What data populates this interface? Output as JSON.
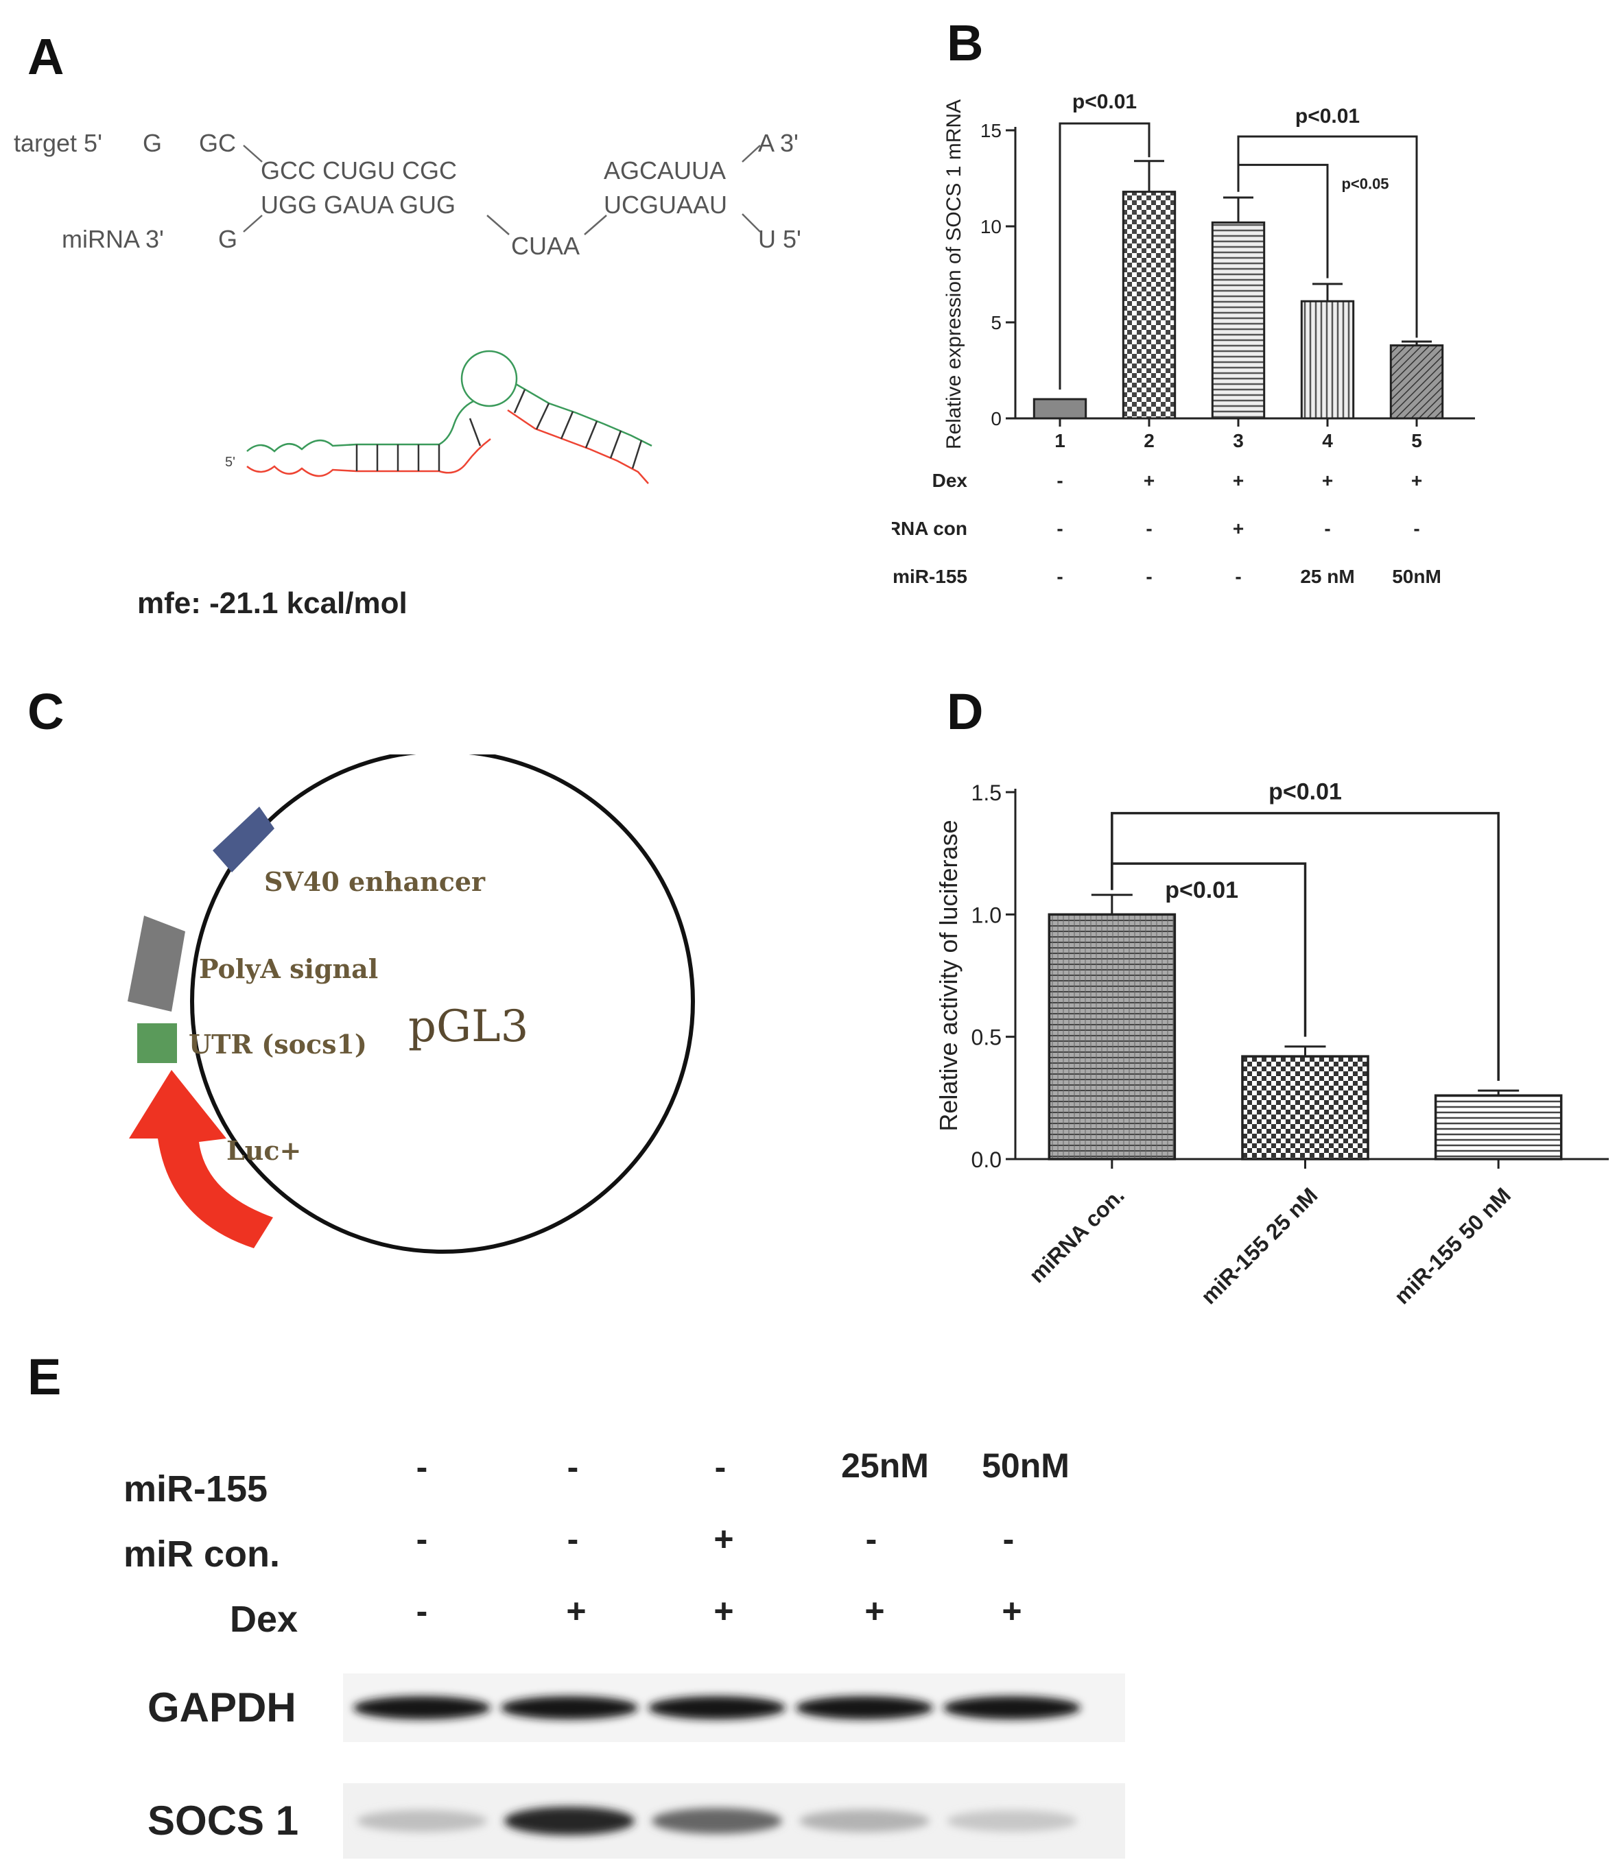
{
  "panels": {
    "A": "A",
    "B": "B",
    "C": "C",
    "D": "D",
    "E": "E"
  },
  "panelA": {
    "row1_label": "target 5'",
    "row1": [
      {
        "t": "G"
      },
      {
        "t": "GC"
      },
      {
        "t": "GCC CUGU  CGC"
      },
      {
        "t": "AGCAUUA"
      },
      {
        "t": "A 3'"
      }
    ],
    "row2": [
      {
        "t": "UGG GAUA  GUG"
      },
      {
        "t": "UCGUAAU"
      }
    ],
    "row3_label": "miRNA  3'",
    "row3": [
      {
        "t": "G"
      },
      {
        "t": "CUAA"
      },
      {
        "t": "U 5'"
      }
    ],
    "struct_label": "5'",
    "mfe": "mfe: -21.1 kcal/mol"
  },
  "panelC": {
    "name": "pGL3",
    "features": [
      {
        "label": "SV40 enhancer",
        "color": "#4a5a8a"
      },
      {
        "label": "PolyA signal",
        "color": "#7a7a7a"
      },
      {
        "label": "UTR (socs1)",
        "color": "#5a9a5a"
      },
      {
        "label": "Luc+",
        "color": "#ee3322"
      }
    ]
  },
  "panelE": {
    "rows": [
      {
        "label": "miR-155",
        "values": [
          "-",
          "-",
          "-",
          "25nM",
          "50nM"
        ]
      },
      {
        "label": "miR con.",
        "values": [
          "-",
          "-",
          "+",
          "-",
          "-"
        ]
      },
      {
        "label": "Dex",
        "values": [
          "-",
          "+",
          "+",
          "+",
          "+"
        ]
      }
    ],
    "bands": [
      {
        "label": "GAPDH",
        "intensity": [
          0.92,
          0.92,
          0.92,
          0.92,
          0.92
        ]
      },
      {
        "label": "SOCS 1",
        "intensity": [
          0.25,
          0.85,
          0.6,
          0.3,
          0.22
        ]
      }
    ]
  },
  "chart_data": [
    {
      "type": "bar",
      "panel": "B",
      "ylabel": "Relative expression of SOCS 1 mRNA",
      "ylim": [
        0,
        15
      ],
      "yticks": [
        "0",
        "5",
        "10",
        "15"
      ],
      "categories": [
        "1",
        "2",
        "3",
        "4",
        "5"
      ],
      "values": [
        1.0,
        11.8,
        10.2,
        6.1,
        3.8
      ],
      "errors": [
        0.0,
        1.6,
        1.3,
        0.9,
        0.2
      ],
      "conditions": [
        {
          "label": "Dex",
          "values": [
            "-",
            "+",
            "+",
            "+",
            "+"
          ]
        },
        {
          "label": "miRNA con",
          "values": [
            "-",
            "-",
            "+",
            "-",
            "-"
          ]
        },
        {
          "label": "miR-155",
          "values": [
            "-",
            "-",
            "-",
            "25 nM",
            "50nM"
          ]
        }
      ],
      "significance": [
        {
          "from": 0,
          "to": 1,
          "label": "p<0.01"
        },
        {
          "from": 2,
          "to": 4,
          "label": "p<0.01"
        },
        {
          "from": 2,
          "to": 3,
          "label": "p<0.05"
        }
      ]
    },
    {
      "type": "bar",
      "panel": "D",
      "ylabel": "Relative activity of luciferase",
      "ylim": [
        0,
        1.5
      ],
      "yticks": [
        "0.0",
        "0.5",
        "1.0",
        "1.5"
      ],
      "categories": [
        "miRNA con.",
        "miR-155 25 nM",
        "miR-155 50 nM"
      ],
      "values": [
        1.0,
        0.42,
        0.26
      ],
      "errors": [
        0.08,
        0.04,
        0.02
      ],
      "significance": [
        {
          "from": 0,
          "to": 2,
          "label": "p<0.01"
        },
        {
          "from": 0,
          "to": 1,
          "label": "p<0.01"
        }
      ]
    }
  ]
}
